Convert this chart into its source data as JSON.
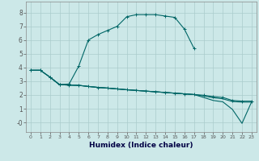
{
  "xlabel": "Humidex (Indice chaleur)",
  "background_color": "#cce8e8",
  "grid_color": "#aacccc",
  "line_color": "#006666",
  "x_ticks": [
    0,
    1,
    2,
    3,
    4,
    5,
    6,
    7,
    8,
    9,
    10,
    11,
    12,
    13,
    14,
    15,
    16,
    17,
    18,
    19,
    20,
    21,
    22,
    23
  ],
  "y_ticks": [
    0,
    1,
    2,
    3,
    4,
    5,
    6,
    7,
    8
  ],
  "ylim": [
    -0.7,
    8.8
  ],
  "xlim": [
    -0.5,
    23.5
  ],
  "main_x": [
    0,
    1,
    2,
    3,
    4,
    5,
    6,
    7,
    8,
    9,
    10,
    11,
    12,
    13,
    14,
    15,
    16,
    17
  ],
  "main_y": [
    3.8,
    3.8,
    3.3,
    2.75,
    2.8,
    4.1,
    6.0,
    6.4,
    6.7,
    7.0,
    7.7,
    7.85,
    7.85,
    7.85,
    7.75,
    7.65,
    6.8,
    5.4
  ],
  "flat1_x": [
    0,
    1,
    2,
    3,
    4,
    5,
    6,
    7,
    8,
    9,
    10,
    11,
    12,
    13,
    14,
    15,
    16,
    17,
    18,
    19,
    20,
    21,
    22,
    23
  ],
  "flat1_y": [
    3.8,
    3.8,
    3.3,
    2.75,
    2.72,
    2.7,
    2.62,
    2.55,
    2.5,
    2.44,
    2.38,
    2.33,
    2.28,
    2.23,
    2.18,
    2.13,
    2.08,
    2.03,
    1.98,
    1.88,
    1.82,
    1.6,
    1.55,
    1.55
  ],
  "flat2_x": [
    2,
    3,
    4,
    5,
    6,
    7,
    8,
    9,
    10,
    11,
    12,
    13,
    14,
    15,
    16,
    17,
    18,
    19,
    20,
    21,
    22,
    23
  ],
  "flat2_y": [
    3.3,
    2.75,
    2.72,
    2.7,
    2.62,
    2.55,
    2.5,
    2.44,
    2.38,
    2.33,
    2.28,
    2.23,
    2.18,
    2.13,
    2.08,
    2.03,
    1.93,
    1.8,
    1.72,
    1.52,
    1.48,
    1.48
  ],
  "dip_x": [
    0,
    1,
    2,
    3,
    4,
    5,
    6,
    7,
    8,
    9,
    10,
    11,
    12,
    13,
    14,
    15,
    16,
    17,
    18,
    19,
    20,
    21,
    22,
    23
  ],
  "dip_y": [
    3.8,
    3.8,
    3.3,
    2.75,
    2.72,
    2.7,
    2.62,
    2.55,
    2.5,
    2.44,
    2.38,
    2.33,
    2.28,
    2.23,
    2.18,
    2.13,
    2.08,
    2.03,
    1.82,
    1.6,
    1.5,
    0.95,
    -0.07,
    1.5
  ]
}
